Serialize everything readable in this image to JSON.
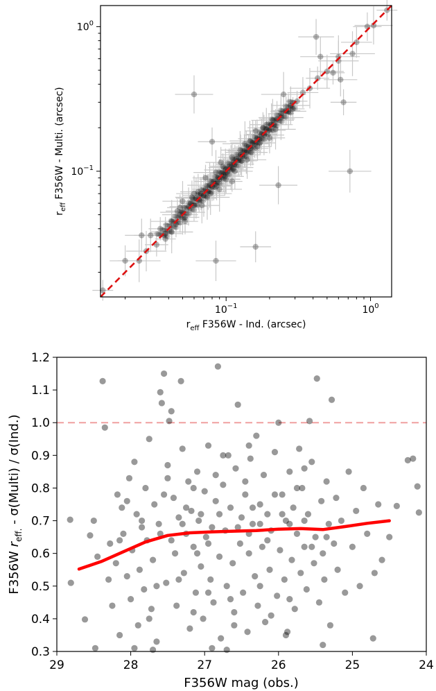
{
  "chart_data": [
    {
      "type": "scatter",
      "x_scale": "log",
      "y_scale": "log",
      "xlim": [
        0.0135,
        1.4
      ],
      "ylim": [
        0.0135,
        1.4
      ],
      "xlabel": {
        "prefix": "r",
        "sub": "eff",
        "rest": " F356W - Ind. (arcsec)"
      },
      "ylabel": {
        "prefix": "r",
        "sub": "eff",
        "rest": " F356W - Multi. (arcsec)"
      },
      "x_ticks": [
        {
          "value": 0.1,
          "base": "10",
          "exp": "−1"
        },
        {
          "value": 1,
          "base": "10",
          "exp": "0"
        }
      ],
      "y_ticks": [
        {
          "value": 0.1,
          "base": "10",
          "exp": "−1"
        },
        {
          "value": 1,
          "base": "10",
          "exp": "0"
        }
      ],
      "reference_line": {
        "type": "one-to-one",
        "color": "#dd1111",
        "style": "dashed"
      },
      "point_color": "#000000",
      "errorbar_color": "#c8c8c8",
      "points": [
        [
          0.014,
          0.015
        ],
        [
          0.02,
          0.024
        ],
        [
          0.028,
          0.028
        ],
        [
          0.033,
          0.031
        ],
        [
          0.038,
          0.037
        ],
        [
          0.042,
          0.045
        ],
        [
          0.045,
          0.043
        ],
        [
          0.048,
          0.05
        ],
        [
          0.05,
          0.052
        ],
        [
          0.052,
          0.048
        ],
        [
          0.055,
          0.057
        ],
        [
          0.057,
          0.06
        ],
        [
          0.06,
          0.058
        ],
        [
          0.062,
          0.065
        ],
        [
          0.065,
          0.063
        ],
        [
          0.067,
          0.07
        ],
        [
          0.07,
          0.068
        ],
        [
          0.072,
          0.075
        ],
        [
          0.075,
          0.072
        ],
        [
          0.077,
          0.08
        ],
        [
          0.08,
          0.078
        ],
        [
          0.082,
          0.085
        ],
        [
          0.085,
          0.082
        ],
        [
          0.088,
          0.09
        ],
        [
          0.09,
          0.088
        ],
        [
          0.093,
          0.097
        ],
        [
          0.096,
          0.094
        ],
        [
          0.099,
          0.102
        ],
        [
          0.102,
          0.099
        ],
        [
          0.105,
          0.108
        ],
        [
          0.108,
          0.106
        ],
        [
          0.112,
          0.115
        ],
        [
          0.115,
          0.112
        ],
        [
          0.118,
          0.122
        ],
        [
          0.122,
          0.119
        ],
        [
          0.126,
          0.13
        ],
        [
          0.13,
          0.127
        ],
        [
          0.134,
          0.138
        ],
        [
          0.138,
          0.135
        ],
        [
          0.143,
          0.147
        ],
        [
          0.148,
          0.144
        ],
        [
          0.153,
          0.157
        ],
        [
          0.158,
          0.155
        ],
        [
          0.164,
          0.168
        ],
        [
          0.17,
          0.166
        ],
        [
          0.176,
          0.18
        ],
        [
          0.183,
          0.178
        ],
        [
          0.19,
          0.195
        ],
        [
          0.198,
          0.192
        ],
        [
          0.206,
          0.21
        ],
        [
          0.215,
          0.21
        ],
        [
          0.225,
          0.23
        ],
        [
          0.24,
          0.235
        ],
        [
          0.26,
          0.262
        ],
        [
          0.28,
          0.285
        ],
        [
          0.31,
          0.305
        ],
        [
          0.34,
          0.35
        ],
        [
          0.38,
          0.375
        ],
        [
          0.43,
          0.44
        ],
        [
          0.5,
          0.49
        ],
        [
          0.6,
          0.62
        ],
        [
          0.072,
          0.09
        ],
        [
          0.06,
          0.07
        ],
        [
          0.09,
          0.075
        ],
        [
          0.11,
          0.125
        ],
        [
          0.14,
          0.12
        ],
        [
          0.16,
          0.19
        ],
        [
          0.2,
          0.17
        ],
        [
          0.05,
          0.062
        ],
        [
          0.035,
          0.04
        ],
        [
          0.03,
          0.036
        ],
        [
          0.025,
          0.024
        ],
        [
          0.052,
          0.045
        ],
        [
          0.068,
          0.058
        ],
        [
          0.085,
          0.098
        ],
        [
          0.1,
          0.088
        ],
        [
          0.125,
          0.14
        ],
        [
          0.15,
          0.135
        ],
        [
          0.18,
          0.2
        ],
        [
          0.22,
          0.195
        ],
        [
          0.046,
          0.053
        ],
        [
          0.058,
          0.066
        ],
        [
          0.078,
          0.07
        ],
        [
          0.095,
          0.108
        ],
        [
          0.115,
          0.1
        ],
        [
          0.135,
          0.155
        ],
        [
          0.165,
          0.148
        ],
        [
          0.06,
          0.34
        ],
        [
          0.038,
          0.034
        ],
        [
          0.092,
          0.115
        ],
        [
          0.45,
          0.62
        ],
        [
          0.55,
          0.48
        ],
        [
          0.62,
          0.43
        ],
        [
          0.72,
          0.1
        ],
        [
          0.65,
          0.3
        ],
        [
          0.42,
          0.85
        ],
        [
          0.25,
          0.34
        ],
        [
          0.08,
          0.16
        ],
        [
          0.23,
          0.08
        ],
        [
          0.11,
          0.085
        ],
        [
          0.16,
          0.03
        ],
        [
          0.085,
          0.024
        ],
        [
          0.29,
          0.27
        ],
        [
          0.026,
          0.036
        ],
        [
          0.042,
          0.038
        ],
        [
          0.048,
          0.056
        ],
        [
          0.064,
          0.072
        ],
        [
          0.074,
          0.066
        ],
        [
          0.086,
          0.079
        ],
        [
          0.098,
          0.092
        ],
        [
          0.112,
          0.104
        ],
        [
          0.128,
          0.118
        ],
        [
          0.146,
          0.162
        ],
        [
          0.172,
          0.158
        ],
        [
          0.19,
          0.21
        ],
        [
          0.21,
          0.225
        ],
        [
          0.24,
          0.25
        ],
        [
          0.27,
          0.26
        ],
        [
          0.75,
          0.65
        ],
        [
          0.95,
          1.0
        ],
        [
          1.05,
          1.02
        ],
        [
          1.3,
          1.3
        ],
        [
          0.8,
          0.78
        ],
        [
          0.6,
          0.58
        ]
      ]
    },
    {
      "type": "scatter",
      "xlim": [
        29,
        24
      ],
      "ylim": [
        0.3,
        1.2
      ],
      "xlabel": "F356W mag (obs.)",
      "ylabel": {
        "part1": "F356W ",
        "italic_r": "r",
        "sub": "eff.",
        "part2": " - σ(Multi) / σ(Ind.)"
      },
      "x_ticks": [
        "29",
        "28",
        "27",
        "26",
        "25",
        "24"
      ],
      "y_ticks": [
        "0.3",
        "0.4",
        "0.5",
        "0.6",
        "0.7",
        "0.8",
        "0.9",
        "1.0",
        "1.1",
        "1.2"
      ],
      "reference_line": {
        "y": 1.0,
        "color": "#f0a0a0",
        "style": "dashed"
      },
      "point_color": "#000000",
      "trend_color": "#ff0000",
      "trend": [
        [
          28.7,
          0.552
        ],
        [
          28.4,
          0.575
        ],
        [
          28.1,
          0.605
        ],
        [
          27.8,
          0.635
        ],
        [
          27.5,
          0.655
        ],
        [
          27.2,
          0.663
        ],
        [
          26.9,
          0.666
        ],
        [
          26.6,
          0.668
        ],
        [
          26.3,
          0.67
        ],
        [
          26.0,
          0.674
        ],
        [
          25.7,
          0.676
        ],
        [
          25.4,
          0.673
        ],
        [
          25.1,
          0.682
        ],
        [
          24.8,
          0.692
        ],
        [
          24.5,
          0.7
        ]
      ],
      "points": [
        [
          28.82,
          0.703
        ],
        [
          28.81,
          0.51
        ],
        [
          28.62,
          0.398
        ],
        [
          28.55,
          0.655
        ],
        [
          28.5,
          0.7
        ],
        [
          28.48,
          0.31
        ],
        [
          28.45,
          0.59
        ],
        [
          28.38,
          1.127
        ],
        [
          28.35,
          0.985
        ],
        [
          28.3,
          0.52
        ],
        [
          28.28,
          0.63
        ],
        [
          28.25,
          0.44
        ],
        [
          28.2,
          0.57
        ],
        [
          28.18,
          0.78
        ],
        [
          28.15,
          0.35
        ],
        [
          28.12,
          0.74
        ],
        [
          28.1,
          0.66
        ],
        [
          28.05,
          0.53
        ],
        [
          28.02,
          0.83
        ],
        [
          28.0,
          0.46
        ],
        [
          27.98,
          0.61
        ],
        [
          27.95,
          0.88
        ],
        [
          27.92,
          0.72
        ],
        [
          27.9,
          0.38
        ],
        [
          27.88,
          0.55
        ],
        [
          27.85,
          0.68
        ],
        [
          27.82,
          0.49
        ],
        [
          27.8,
          0.8
        ],
        [
          27.78,
          0.64
        ],
        [
          27.75,
          0.95
        ],
        [
          27.72,
          0.43
        ],
        [
          27.7,
          0.58
        ],
        [
          27.68,
          0.75
        ],
        [
          27.65,
          0.33
        ],
        [
          27.62,
          0.69
        ],
        [
          27.6,
          1.093
        ],
        [
          27.58,
          1.06
        ],
        [
          27.55,
          1.15
        ],
        [
          27.52,
          0.51
        ],
        [
          27.5,
          0.87
        ],
        [
          27.48,
          1.005
        ],
        [
          27.45,
          1.035
        ],
        [
          27.42,
          0.77
        ],
        [
          27.4,
          0.6
        ],
        [
          27.38,
          0.44
        ],
        [
          27.35,
          0.71
        ],
        [
          27.32,
          1.127
        ],
        [
          27.3,
          0.92
        ],
        [
          27.28,
          0.54
        ],
        [
          27.25,
          0.66
        ],
        [
          27.22,
          0.82
        ],
        [
          27.2,
          0.37
        ],
        [
          27.18,
          0.73
        ],
        [
          27.15,
          0.62
        ],
        [
          27.12,
          0.48
        ],
        [
          27.1,
          0.85
        ],
        [
          27.08,
          0.7
        ],
        [
          27.05,
          0.56
        ],
        [
          27.02,
          0.4
        ],
        [
          27.0,
          0.79
        ],
        [
          26.98,
          0.65
        ],
        [
          26.95,
          0.93
        ],
        [
          26.92,
          0.52
        ],
        [
          26.9,
          0.68
        ],
        [
          26.88,
          0.45
        ],
        [
          26.85,
          0.76
        ],
        [
          26.82,
          1.172
        ],
        [
          26.8,
          0.59
        ],
        [
          26.78,
          0.34
        ],
        [
          26.75,
          0.81
        ],
        [
          26.72,
          0.67
        ],
        [
          26.7,
          0.5
        ],
        [
          26.68,
          0.9
        ],
        [
          26.65,
          0.74
        ],
        [
          26.62,
          0.57
        ],
        [
          26.6,
          0.42
        ],
        [
          26.58,
          0.86
        ],
        [
          26.55,
          1.055
        ],
        [
          26.52,
          0.63
        ],
        [
          26.5,
          0.71
        ],
        [
          26.48,
          0.48
        ],
        [
          26.45,
          0.78
        ],
        [
          26.42,
          0.36
        ],
        [
          26.4,
          0.6
        ],
        [
          26.38,
          0.89
        ],
        [
          26.35,
          0.69
        ],
        [
          26.32,
          0.53
        ],
        [
          26.3,
          0.96
        ],
        [
          26.28,
          0.44
        ],
        [
          26.25,
          0.75
        ],
        [
          26.22,
          0.62
        ],
        [
          26.2,
          0.84
        ],
        [
          26.18,
          0.39
        ],
        [
          26.15,
          0.72
        ],
        [
          26.12,
          0.55
        ],
        [
          26.1,
          0.67
        ],
        [
          26.05,
          0.91
        ],
        [
          26.02,
          0.47
        ],
        [
          26.0,
          1.0
        ],
        [
          25.98,
          0.61
        ],
        [
          25.95,
          0.78
        ],
        [
          25.92,
          0.52
        ],
        [
          25.9,
          0.7
        ],
        [
          25.88,
          0.36
        ],
        [
          25.85,
          0.85
        ],
        [
          25.82,
          0.58
        ],
        [
          25.8,
          0.74
        ],
        [
          25.78,
          0.43
        ],
        [
          25.75,
          0.66
        ],
        [
          25.72,
          0.92
        ],
        [
          25.7,
          0.54
        ],
        [
          25.68,
          0.8
        ],
        [
          25.65,
          0.62
        ],
        [
          25.62,
          0.49
        ],
        [
          25.6,
          0.72
        ],
        [
          25.58,
          1.005
        ],
        [
          25.55,
          0.88
        ],
        [
          25.52,
          0.57
        ],
        [
          25.5,
          0.65
        ],
        [
          25.48,
          1.135
        ],
        [
          25.45,
          0.45
        ],
        [
          25.42,
          0.76
        ],
        [
          25.4,
          0.6
        ],
        [
          25.38,
          0.52
        ],
        [
          25.35,
          0.82
        ],
        [
          25.32,
          0.69
        ],
        [
          25.3,
          0.38
        ],
        [
          25.28,
          1.07
        ],
        [
          25.25,
          0.63
        ],
        [
          25.22,
          0.77
        ],
        [
          25.2,
          0.55
        ],
        [
          25.15,
          0.7
        ],
        [
          25.1,
          0.48
        ],
        [
          25.05,
          0.85
        ],
        [
          25.0,
          0.62
        ],
        [
          24.95,
          0.73
        ],
        [
          24.9,
          0.5
        ],
        [
          24.85,
          0.8
        ],
        [
          24.8,
          0.66
        ],
        [
          24.72,
          0.34
        ],
        [
          24.7,
          0.54
        ],
        [
          24.65,
          0.75
        ],
        [
          24.6,
          0.58
        ],
        [
          24.5,
          0.65
        ],
        [
          24.4,
          0.745
        ],
        [
          24.25,
          0.885
        ],
        [
          24.18,
          0.89
        ],
        [
          24.12,
          0.805
        ],
        [
          24.1,
          0.725
        ],
        [
          27.95,
          0.31
        ],
        [
          27.7,
          0.305
        ],
        [
          26.9,
          0.31
        ],
        [
          26.7,
          0.305
        ],
        [
          25.9,
          0.35
        ],
        [
          25.4,
          0.32
        ],
        [
          28.15,
          0.64
        ],
        [
          27.6,
          0.66
        ],
        [
          27.3,
          0.69
        ],
        [
          27.1,
          0.6
        ],
        [
          26.8,
          0.72
        ],
        [
          26.4,
          0.66
        ],
        [
          26.15,
          0.64
        ],
        [
          25.85,
          0.69
        ],
        [
          25.55,
          0.62
        ],
        [
          27.45,
          0.64
        ],
        [
          27.25,
          0.74
        ],
        [
          27.05,
          0.72
        ],
        [
          26.95,
          0.63
        ],
        [
          26.55,
          0.68
        ],
        [
          26.35,
          0.74
        ],
        [
          26.25,
          0.69
        ],
        [
          25.95,
          0.72
        ],
        [
          25.65,
          0.7
        ],
        [
          25.35,
          0.65
        ],
        [
          27.85,
          0.7
        ],
        [
          27.55,
          0.78
        ],
        [
          27.15,
          0.8
        ],
        [
          26.85,
          0.84
        ],
        [
          26.45,
          0.82
        ],
        [
          26.05,
          0.78
        ],
        [
          25.75,
          0.8
        ],
        [
          27.65,
          0.5
        ],
        [
          27.35,
          0.52
        ],
        [
          26.95,
          0.48
        ],
        [
          26.65,
          0.46
        ],
        [
          26.25,
          0.5
        ],
        [
          25.85,
          0.46
        ],
        [
          27.75,
          0.4
        ],
        [
          27.15,
          0.42
        ],
        [
          26.6,
          0.38
        ],
        [
          26.1,
          0.41
        ],
        [
          28.05,
          0.76
        ],
        [
          27.5,
          0.83
        ],
        [
          26.75,
          0.9
        ],
        [
          26.4,
          0.93
        ],
        [
          25.65,
          0.86
        ]
      ]
    }
  ]
}
